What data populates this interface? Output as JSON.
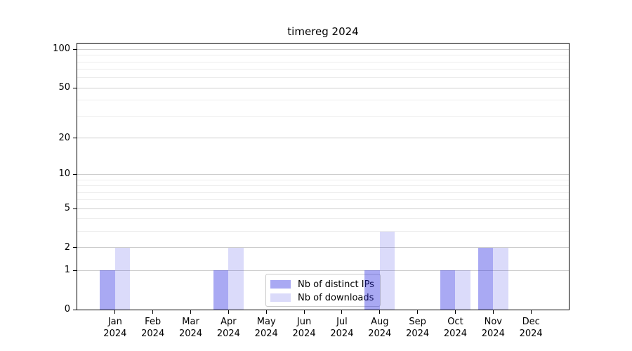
{
  "chart_data": {
    "type": "bar",
    "title": "timereg 2024",
    "categories": [
      {
        "month": "Jan",
        "year": "2024"
      },
      {
        "month": "Feb",
        "year": "2024"
      },
      {
        "month": "Mar",
        "year": "2024"
      },
      {
        "month": "Apr",
        "year": "2024"
      },
      {
        "month": "May",
        "year": "2024"
      },
      {
        "month": "Jun",
        "year": "2024"
      },
      {
        "month": "Jul",
        "year": "2024"
      },
      {
        "month": "Aug",
        "year": "2024"
      },
      {
        "month": "Sep",
        "year": "2024"
      },
      {
        "month": "Oct",
        "year": "2024"
      },
      {
        "month": "Nov",
        "year": "2024"
      },
      {
        "month": "Dec",
        "year": "2024"
      }
    ],
    "series": [
      {
        "name": "Nb of distinct IPs",
        "color": "rgba(40,40,225,0.40)",
        "values": [
          1,
          0,
          0,
          1,
          0,
          0,
          0,
          1,
          0,
          1,
          2,
          0
        ]
      },
      {
        "name": "Nb of downloads",
        "color": "rgba(40,40,225,0.17)",
        "values": [
          2,
          0,
          0,
          2,
          0,
          0,
          0,
          3,
          0,
          1,
          2,
          0
        ]
      }
    ],
    "xlabel": "",
    "ylabel": "",
    "yscale": "log1p",
    "ylim": [
      0,
      110
    ],
    "yticks_major": [
      0,
      1,
      2,
      5,
      10,
      20,
      50,
      100
    ],
    "yticks_minor": [
      3,
      4,
      6,
      7,
      8,
      9,
      30,
      40,
      60,
      70,
      80,
      90
    ],
    "grid": "horizontal",
    "legend_position": "inside-bottom-center",
    "frame_color": "#000000",
    "major_grid_color": "#cdcdcd",
    "minor_grid_color": "#ececec"
  }
}
